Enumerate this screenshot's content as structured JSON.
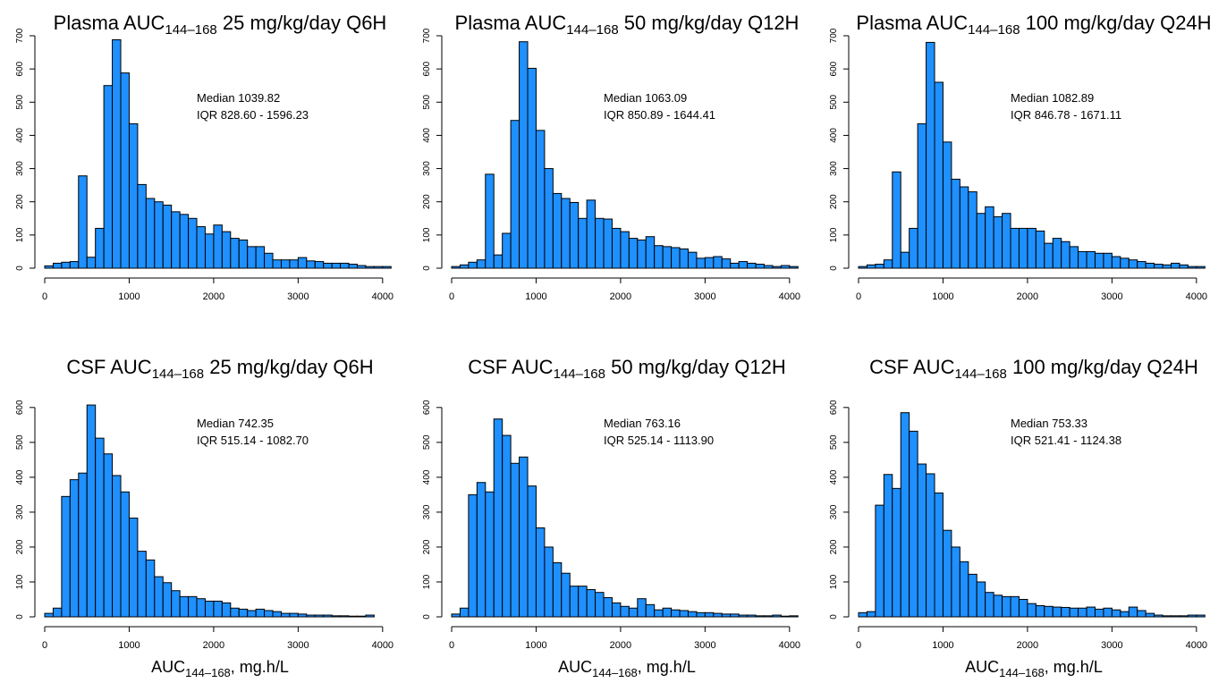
{
  "colors": {
    "bar_fill": "#1E90FF",
    "bar_stroke": "#000000",
    "axis": "#000000",
    "text": "#000000"
  },
  "chart_data": [
    {
      "type": "bar",
      "title_main": "Plasma AUC",
      "title_sub": "144–168",
      "title_rest": " 25 mg/kg/day Q6H",
      "annotation_median": "Median 1039.82",
      "annotation_iqr": "IQR 828.60 - 1596.23",
      "xlabel_main": "",
      "xlabel_sub": "",
      "xlabel_rest": "",
      "xlim": [
        0,
        4150
      ],
      "ylim": [
        0,
        700
      ],
      "xticks": [
        0,
        1000,
        2000,
        3000,
        4000
      ],
      "xtick_labels": [
        "0",
        "1000",
        "2000",
        "3000",
        "4000"
      ],
      "yticks": [
        0,
        100,
        200,
        300,
        400,
        500,
        600,
        700
      ],
      "ytick_labels": [
        "0",
        "100",
        "200",
        "300",
        "400",
        "500",
        "600",
        "700"
      ],
      "bin_width": 100,
      "bin_start": 0,
      "values": [
        7,
        15,
        18,
        20,
        278,
        33,
        120,
        550,
        688,
        588,
        435,
        252,
        210,
        200,
        190,
        170,
        162,
        150,
        125,
        103,
        130,
        110,
        90,
        85,
        65,
        65,
        45,
        25,
        25,
        25,
        32,
        22,
        20,
        15,
        15,
        15,
        12,
        8,
        5,
        5,
        5
      ]
    },
    {
      "type": "bar",
      "title_main": "Plasma AUC",
      "title_sub": "144–168",
      "title_rest": " 50 mg/kg/day Q12H",
      "annotation_median": "Median 1063.09",
      "annotation_iqr": "IQR 850.89 - 1644.41",
      "xlabel_main": "",
      "xlabel_sub": "",
      "xlabel_rest": "",
      "xlim": [
        0,
        4150
      ],
      "ylim": [
        0,
        700
      ],
      "xticks": [
        0,
        1000,
        2000,
        3000,
        4000
      ],
      "xtick_labels": [
        "0",
        "1000",
        "2000",
        "3000",
        "4000"
      ],
      "yticks": [
        0,
        100,
        200,
        300,
        400,
        500,
        600,
        700
      ],
      "ytick_labels": [
        "0",
        "100",
        "200",
        "300",
        "400",
        "500",
        "600",
        "700"
      ],
      "bin_width": 100,
      "bin_start": 0,
      "values": [
        5,
        10,
        18,
        25,
        283,
        40,
        105,
        445,
        682,
        602,
        415,
        300,
        225,
        210,
        198,
        150,
        205,
        150,
        148,
        120,
        110,
        90,
        85,
        95,
        68,
        65,
        62,
        58,
        48,
        30,
        32,
        35,
        28,
        15,
        20,
        15,
        12,
        8,
        5,
        8,
        5
      ]
    },
    {
      "type": "bar",
      "title_main": "Plasma AUC",
      "title_sub": "144–168",
      "title_rest": " 100 mg/kg/day Q24H",
      "annotation_median": "Median 1082.89",
      "annotation_iqr": "IQR 846.78 - 1671.11",
      "xlabel_main": "",
      "xlabel_sub": "",
      "xlabel_rest": "",
      "xlim": [
        0,
        4150
      ],
      "ylim": [
        0,
        700
      ],
      "xticks": [
        0,
        1000,
        2000,
        3000,
        4000
      ],
      "xtick_labels": [
        "0",
        "1000",
        "2000",
        "3000",
        "4000"
      ],
      "yticks": [
        0,
        100,
        200,
        300,
        400,
        500,
        600,
        700
      ],
      "ytick_labels": [
        "0",
        "100",
        "200",
        "300",
        "400",
        "500",
        "600",
        "700"
      ],
      "bin_width": 100,
      "bin_start": 0,
      "values": [
        5,
        10,
        12,
        25,
        290,
        48,
        120,
        435,
        680,
        560,
        380,
        268,
        245,
        230,
        165,
        185,
        155,
        165,
        120,
        120,
        120,
        112,
        75,
        90,
        80,
        65,
        50,
        50,
        45,
        45,
        35,
        30,
        25,
        20,
        15,
        12,
        10,
        15,
        10,
        5,
        5
      ]
    },
    {
      "type": "bar",
      "title_main": "CSF AUC",
      "title_sub": "144–168",
      "title_rest": " 25 mg/kg/day Q6H",
      "annotation_median": "Median 742.35",
      "annotation_iqr": "IQR 515.14 - 1082.70",
      "xlabel_main": "AUC",
      "xlabel_sub": "144–168",
      "xlabel_rest": ", mg.h/L",
      "xlim": [
        0,
        4150
      ],
      "ylim": [
        0,
        620
      ],
      "xticks": [
        0,
        1000,
        2000,
        3000,
        4000
      ],
      "xtick_labels": [
        "0",
        "1000",
        "2000",
        "3000",
        "4000"
      ],
      "yticks": [
        0,
        100,
        200,
        300,
        400,
        500,
        600
      ],
      "ytick_labels": [
        "0",
        "100",
        "200",
        "300",
        "400",
        "500",
        "600"
      ],
      "bin_width": 100,
      "bin_start": 0,
      "values": [
        10,
        25,
        345,
        393,
        412,
        607,
        512,
        467,
        405,
        358,
        283,
        188,
        163,
        115,
        98,
        75,
        58,
        58,
        52,
        45,
        45,
        40,
        25,
        22,
        18,
        22,
        18,
        15,
        10,
        10,
        8,
        5,
        5,
        5,
        3,
        3,
        2,
        2,
        5
      ]
    },
    {
      "type": "bar",
      "title_main": "CSF AUC",
      "title_sub": "144–168",
      "title_rest": " 50 mg/kg/day Q12H",
      "annotation_median": "Median 763.16",
      "annotation_iqr": "IQR 525.14 - 1113.90",
      "xlabel_main": "AUC",
      "xlabel_sub": "144–168",
      "xlabel_rest": ", mg.h/L",
      "xlim": [
        0,
        4150
      ],
      "ylim": [
        0,
        620
      ],
      "xticks": [
        0,
        1000,
        2000,
        3000,
        4000
      ],
      "xtick_labels": [
        "0",
        "1000",
        "2000",
        "3000",
        "4000"
      ],
      "yticks": [
        0,
        100,
        200,
        300,
        400,
        500,
        600
      ],
      "ytick_labels": [
        "0",
        "100",
        "200",
        "300",
        "400",
        "500",
        "600"
      ],
      "bin_width": 100,
      "bin_start": 0,
      "values": [
        8,
        25,
        350,
        385,
        358,
        567,
        520,
        440,
        458,
        375,
        255,
        200,
        155,
        125,
        88,
        88,
        78,
        70,
        55,
        40,
        30,
        25,
        52,
        35,
        20,
        25,
        20,
        18,
        15,
        12,
        12,
        10,
        8,
        8,
        5,
        5,
        3,
        3,
        5,
        2,
        3
      ]
    },
    {
      "type": "bar",
      "title_main": "CSF AUC",
      "title_sub": "144–168",
      "title_rest": " 100 mg/kg/day Q24H",
      "annotation_median": "Median 753.33",
      "annotation_iqr": "IQR 521.41 - 1124.38",
      "xlabel_main": "AUC",
      "xlabel_sub": "144–168",
      "xlabel_rest": ", mg.h/L",
      "xlim": [
        0,
        4150
      ],
      "ylim": [
        0,
        620
      ],
      "xticks": [
        0,
        1000,
        2000,
        3000,
        4000
      ],
      "xtick_labels": [
        "0",
        "1000",
        "2000",
        "3000",
        "4000"
      ],
      "yticks": [
        0,
        100,
        200,
        300,
        400,
        500,
        600
      ],
      "ytick_labels": [
        "0",
        "100",
        "200",
        "300",
        "400",
        "500",
        "600"
      ],
      "bin_width": 100,
      "bin_start": 0,
      "values": [
        12,
        15,
        320,
        408,
        368,
        585,
        532,
        438,
        410,
        355,
        248,
        200,
        158,
        122,
        100,
        70,
        62,
        58,
        58,
        50,
        38,
        32,
        30,
        28,
        27,
        25,
        25,
        28,
        22,
        25,
        20,
        15,
        28,
        18,
        10,
        5,
        3,
        3,
        3,
        5,
        5
      ]
    }
  ]
}
